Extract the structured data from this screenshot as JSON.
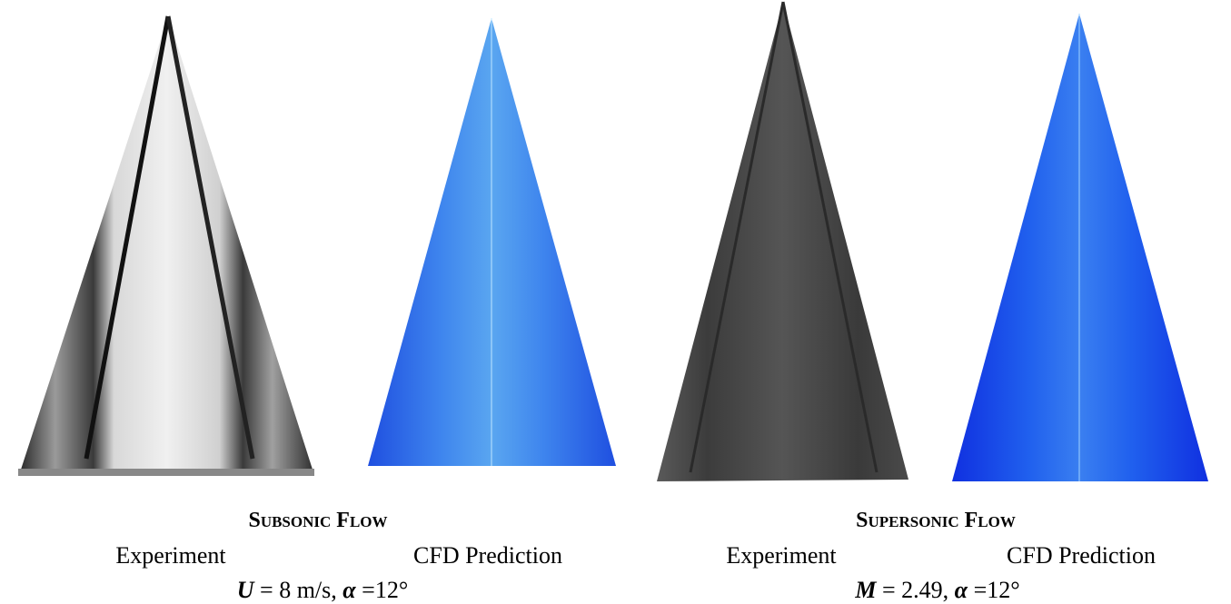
{
  "panels": [
    {
      "title": "Subsonic Flow",
      "images": [
        {
          "label": "Experiment"
        },
        {
          "label": "CFD Prediction"
        }
      ],
      "condition": {
        "variable": "U",
        "rest": " = 8 m/s, ",
        "symbol": "α",
        "angle": " =12°"
      }
    },
    {
      "title": "Supersonic Flow",
      "images": [
        {
          "label": "Experiment"
        },
        {
          "label": "CFD Prediction"
        }
      ],
      "condition": {
        "variable": "M",
        "rest": " = 2.49, ",
        "symbol": "α",
        "angle": " =12°"
      }
    }
  ]
}
